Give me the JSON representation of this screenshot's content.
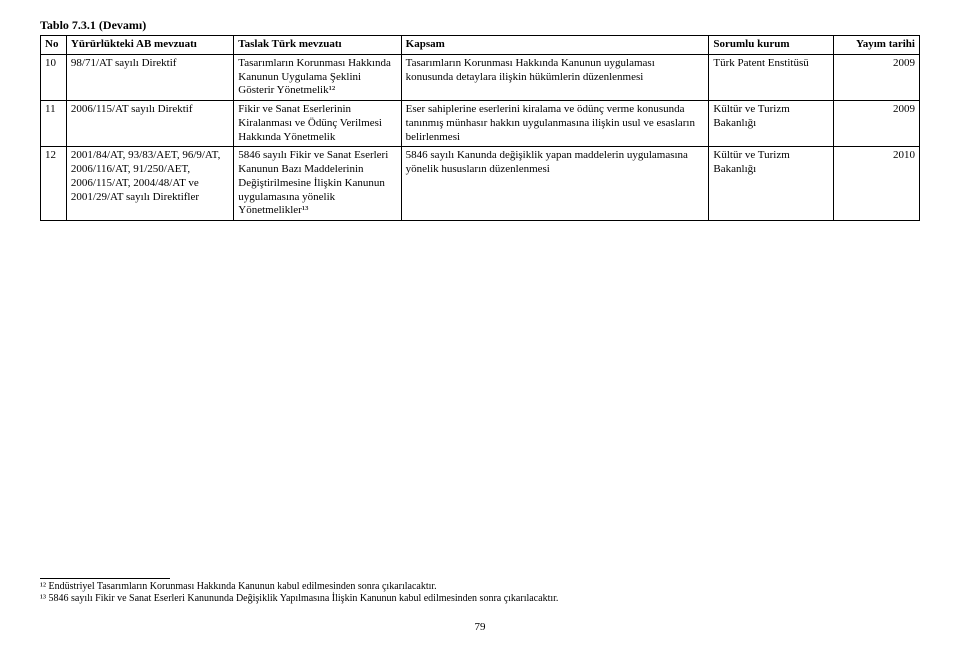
{
  "caption": "Tablo 7.3.1 (Devamı)",
  "headers": {
    "no": "No",
    "ab": "Yürürlükteki AB mevzuatı",
    "tr": "Taslak Türk mevzuatı",
    "kapsam": "Kapsam",
    "kurum": "Sorumlu kurum",
    "yayim": "Yayım tarihi"
  },
  "rows": [
    {
      "no": "10",
      "ab": "98/71/AT sayılı Direktif",
      "tr": "Tasarımların Korunması Hakkında Kanunun Uygulama Şeklini Gösterir Yönetmelik¹²",
      "kapsam": "Tasarımların Korunması Hakkında Kanunun uygulaması konusunda detaylara ilişkin hükümlerin düzenlenmesi",
      "kurum": "Türk Patent Enstitüsü",
      "yayim": "2009"
    },
    {
      "no": "11",
      "ab": "2006/115/AT sayılı Direktif",
      "tr": "Fikir ve Sanat Eserlerinin Kiralanması ve Ödünç Verilmesi Hakkında Yönetmelik",
      "kapsam": "Eser sahiplerine eserlerini kiralama ve ödünç verme konusunda tanınmış münhasır hakkın uygulanmasına ilişkin usul ve esasların belirlenmesi",
      "kurum": "Kültür ve Turizm Bakanlığı",
      "yayim": "2009"
    },
    {
      "no": "12",
      "ab": "2001/84/AT, 93/83/AET, 96/9/AT, 2006/116/AT, 91/250/AET, 2006/115/AT, 2004/48/AT ve 2001/29/AT sayılı Direktifler",
      "tr": "5846 sayılı Fikir ve Sanat Eserleri Kanunun Bazı Maddelerinin Değiştirilmesine İlişkin Kanunun uygulamasına yönelik Yönetmelikler¹³",
      "kapsam": "5846 sayılı Kanunda değişiklik yapan maddelerin uygulamasına yönelik hususların düzenlenmesi",
      "kurum": "Kültür ve Turizm Bakanlığı",
      "yayim": "2010"
    }
  ],
  "footnotes": {
    "f12": "¹² Endüstriyel Tasarımların Korunması Hakkında Kanunun kabul edilmesinden sonra çıkarılacaktır.",
    "f13": "¹³ 5846 sayılı Fikir ve Sanat Eserleri Kanununda Değişiklik Yapılmasına İlişkin Kanunun kabul edilmesinden sonra çıkarılacaktır."
  },
  "page_number": "79"
}
